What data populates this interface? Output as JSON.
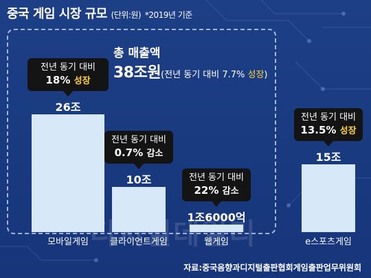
{
  "header": {
    "title": "중국 게임 시장 규모",
    "unit": "(단위:원)",
    "basis": "*2019년 기준"
  },
  "total": {
    "label": "총 매출액",
    "value": "38조원",
    "note_prefix": "(전년 동기 대비 7.7% ",
    "note_growth": "성장",
    "note_suffix": ")"
  },
  "watermark": "디지털데일리",
  "source": "자료:중국음향과디지털출판협회게임출판업무위원회",
  "chart_data": {
    "type": "bar",
    "title": "중국 게임 시장 규모",
    "unit": "원",
    "categories": [
      "모바일게임",
      "클라이언트게임",
      "웹게임",
      "e스포츠게임"
    ],
    "values": [
      26,
      10,
      1.6,
      15
    ],
    "value_unit": "조",
    "value_labels": [
      "26조",
      "10조",
      "1조6000억",
      "15조"
    ],
    "callouts": [
      {
        "line1": "전년 동기 대비",
        "pct": "18%",
        "dir": "성장"
      },
      {
        "line1": "전년 동기 대비",
        "pct": "0.7%",
        "dir": "감소"
      },
      {
        "line1": "전년 동기 대비",
        "pct": "22%",
        "dir": "감소"
      },
      {
        "line1": "전년 동기 대비",
        "pct": "13.5%",
        "dir": "성장"
      }
    ],
    "colors": {
      "bar": "#d7e8f8",
      "callout": "#141414",
      "growth": "#ffd33b",
      "decline": "#ffffff"
    }
  }
}
